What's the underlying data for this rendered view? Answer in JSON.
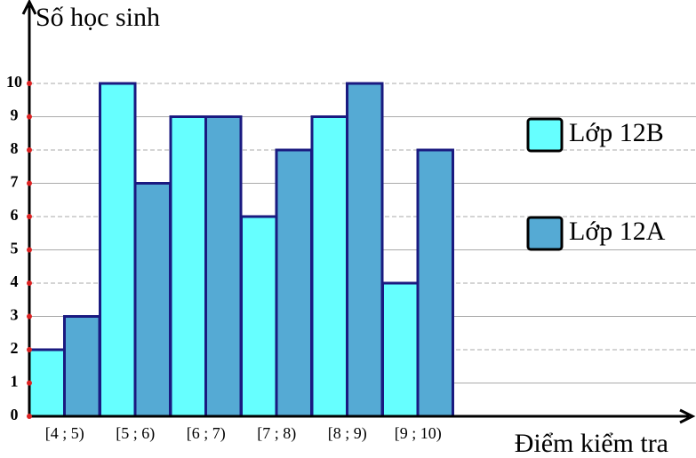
{
  "chart_data": {
    "type": "bar",
    "y_label": "Số học sinh",
    "x_label": "Điểm kiểm tra",
    "categories": [
      "[4 ; 5)",
      "[5 ; 6)",
      "[6 ; 7)",
      "[7 ; 8)",
      "[8 ; 9)",
      "[9 ; 10)"
    ],
    "series": [
      {
        "name": "Lớp 12B",
        "color": "#66ffff",
        "values": [
          2,
          10,
          9,
          6,
          9,
          4
        ]
      },
      {
        "name": "Lớp 12A",
        "color": "#55aad4",
        "values": [
          3,
          7,
          9,
          8,
          10,
          8
        ]
      }
    ],
    "ylim": [
      0,
      12.4
    ],
    "yticks": [
      0,
      1,
      2,
      3,
      4,
      5,
      6,
      7,
      8,
      9,
      10
    ],
    "grid": true
  }
}
